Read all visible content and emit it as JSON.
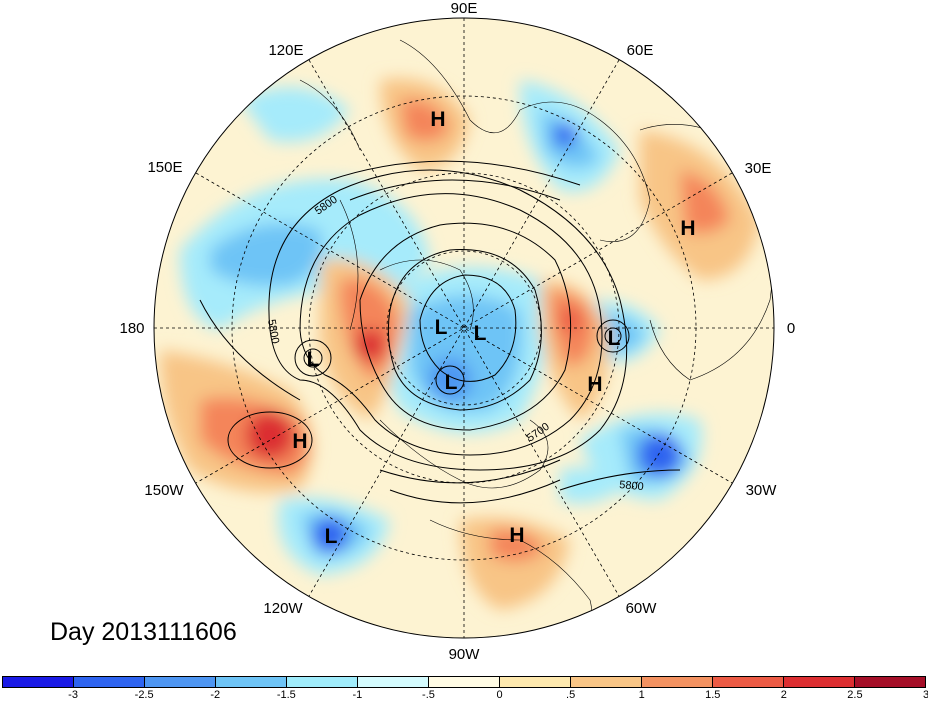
{
  "map": {
    "projection": "polar-stereographic-north",
    "longitude_labels": [
      {
        "text": "90E"
      },
      {
        "text": "60E"
      },
      {
        "text": "30E"
      },
      {
        "text": "0"
      },
      {
        "text": "30W"
      },
      {
        "text": "60W"
      },
      {
        "text": "90W"
      },
      {
        "text": "120W"
      },
      {
        "text": "150W"
      },
      {
        "text": "180"
      },
      {
        "text": "150E"
      },
      {
        "text": "120E"
      }
    ],
    "pressure_systems": [
      {
        "label": "H"
      },
      {
        "label": "H"
      },
      {
        "label": "L"
      },
      {
        "label": "L"
      },
      {
        "label": "L"
      },
      {
        "label": "L"
      },
      {
        "label": "L"
      },
      {
        "label": "H"
      },
      {
        "label": "H"
      },
      {
        "label": "L"
      },
      {
        "label": "H"
      }
    ],
    "contour_labels": [
      "5800",
      "5800",
      "5700",
      "5800"
    ],
    "anomaly_colors": {
      "strong_neg": "#2323d4",
      "neg": "#4c8ef0",
      "weak_neg": "#a6ebfb",
      "weak_pos": "#f9d79c",
      "pos": "#f4855a",
      "strong_pos": "#d9252e"
    }
  },
  "date_label": "Day 2013111606",
  "colorbar": {
    "colors": [
      "#1a1ae6",
      "#2e64f0",
      "#4e96f2",
      "#6ec4f6",
      "#a0ecfb",
      "#d4fbfe",
      "#fffbe4",
      "#fde8ae",
      "#f8c586",
      "#f39261",
      "#ec5b45",
      "#dc2e31",
      "#a50f28"
    ],
    "ticks": [
      "-3",
      "-2.5",
      "-2",
      "-1.5",
      "-1",
      "-.5",
      "0",
      ".5",
      "1",
      "1.5",
      "2",
      "2.5",
      "3"
    ]
  }
}
